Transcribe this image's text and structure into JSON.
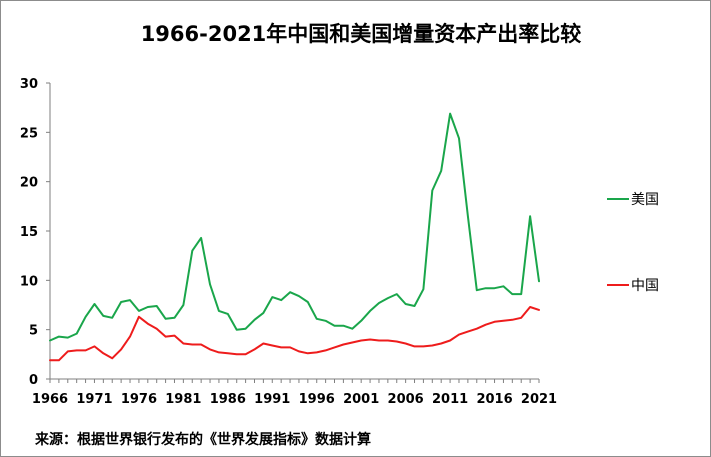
{
  "chart_data": {
    "type": "line",
    "title": "1966-2021年中国和美国增量资本产出率比较",
    "xlabel": "",
    "ylabel": "",
    "ylim": [
      0,
      30
    ],
    "yticks": [
      0,
      5,
      10,
      15,
      20,
      25,
      30
    ],
    "xticks": [
      1966,
      1971,
      1976,
      1981,
      1986,
      1991,
      1996,
      2001,
      2006,
      2011,
      2016,
      2021
    ],
    "x": [
      1966,
      1967,
      1968,
      1969,
      1970,
      1971,
      1972,
      1973,
      1974,
      1975,
      1976,
      1977,
      1978,
      1979,
      1980,
      1981,
      1982,
      1983,
      1984,
      1985,
      1986,
      1987,
      1988,
      1989,
      1990,
      1991,
      1992,
      1993,
      1994,
      1995,
      1996,
      1997,
      1998,
      1999,
      2000,
      2001,
      2002,
      2003,
      2004,
      2005,
      2006,
      2007,
      2008,
      2009,
      2010,
      2011,
      2012,
      2013,
      2014,
      2015,
      2016,
      2017,
      2018,
      2019,
      2020,
      2021
    ],
    "series": [
      {
        "name": "美国",
        "color": "#1aa64b",
        "values": [
          3.9,
          4.3,
          4.2,
          4.6,
          6.3,
          7.6,
          6.4,
          6.2,
          7.8,
          8.0,
          6.9,
          7.3,
          7.4,
          6.1,
          6.2,
          7.5,
          13.0,
          14.3,
          9.6,
          6.9,
          6.6,
          5.0,
          5.1,
          6.0,
          6.7,
          8.3,
          8.0,
          8.8,
          8.4,
          7.8,
          6.1,
          5.9,
          5.4,
          5.4,
          5.1,
          5.9,
          6.9,
          7.7,
          8.2,
          8.6,
          7.6,
          7.4,
          9.1,
          19.1,
          21.1,
          26.9,
          24.4,
          16.5,
          9.0,
          9.2,
          9.2,
          9.4,
          8.6,
          8.6,
          16.5,
          9.9
        ]
      },
      {
        "name": "中国",
        "color": "#ee1c1c",
        "values": [
          1.9,
          1.9,
          2.8,
          2.9,
          2.9,
          3.3,
          2.6,
          2.1,
          3.0,
          4.3,
          6.3,
          5.6,
          5.1,
          4.3,
          4.4,
          3.6,
          3.5,
          3.5,
          3.0,
          2.7,
          2.6,
          2.5,
          2.5,
          3.0,
          3.6,
          3.4,
          3.2,
          3.2,
          2.8,
          2.6,
          2.7,
          2.9,
          3.2,
          3.5,
          3.7,
          3.9,
          4.0,
          3.9,
          3.9,
          3.8,
          3.6,
          3.3,
          3.3,
          3.4,
          3.6,
          3.9,
          4.5,
          4.8,
          5.1,
          5.5,
          5.8,
          5.9,
          6.0,
          6.2,
          7.3,
          7.0
        ]
      }
    ],
    "legend": [
      "美国",
      "中国"
    ],
    "legend_position": "right",
    "source_note": "来源：根据世界银行发布的《世界发展指标》数据计算"
  }
}
